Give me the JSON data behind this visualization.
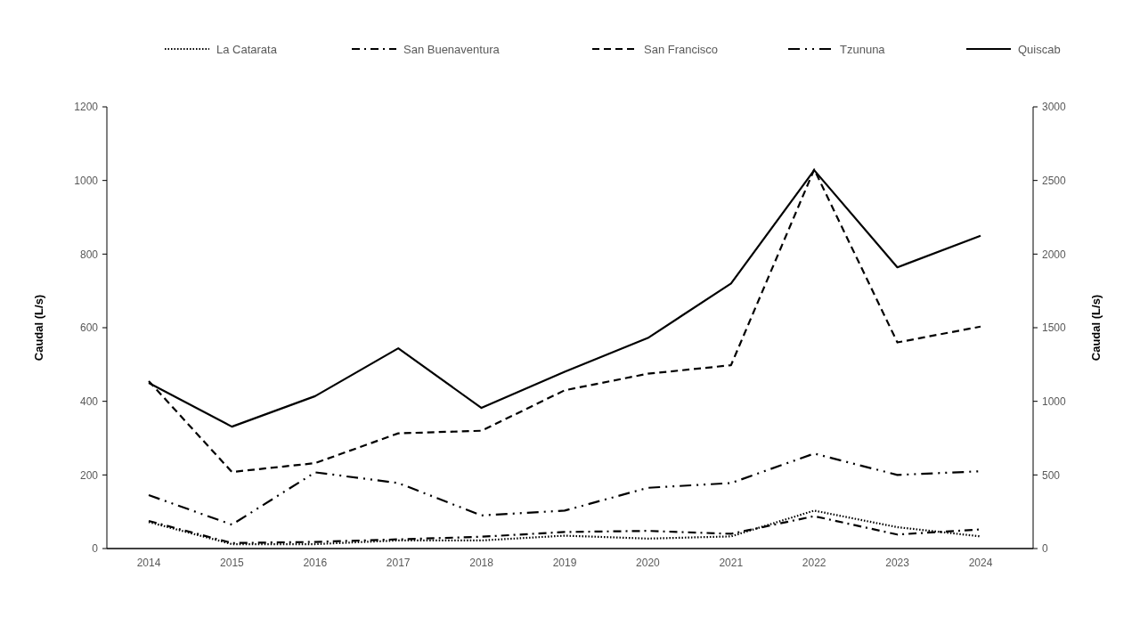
{
  "chart_data": {
    "type": "line",
    "categories": [
      "2014",
      "2015",
      "2016",
      "2017",
      "2018",
      "2019",
      "2020",
      "2021",
      "2022",
      "2023",
      "2024"
    ],
    "ylabel": "Caudal (L/s)",
    "y2label": "Caudal (L/s)",
    "ylim": [
      0,
      1200
    ],
    "yticks": [
      0,
      200,
      400,
      600,
      800,
      1000,
      1200
    ],
    "y2lim": [
      0,
      3000
    ],
    "y2ticks": [
      0,
      500,
      1000,
      1500,
      2000,
      2500,
      3000
    ],
    "grid": false,
    "legend": "top",
    "series": [
      {
        "name": "La Catarata",
        "color": "#000000",
        "line_style": "dotted",
        "values": [
          72,
          12,
          12,
          22,
          22,
          35,
          27,
          33,
          103,
          58,
          33
        ]
      },
      {
        "name": "San Buenaventura",
        "color": "#000000",
        "line_style": "dashdot",
        "values": [
          75,
          15,
          18,
          25,
          32,
          45,
          48,
          40,
          88,
          38,
          52
        ]
      },
      {
        "name": "San Francisco",
        "color": "#000000",
        "line_style": "dashed",
        "values": [
          455,
          208,
          232,
          313,
          320,
          430,
          475,
          498,
          1030,
          560,
          603
        ]
      },
      {
        "name": "Tzununa",
        "color": "#000000",
        "line_style": "longdashdotdot",
        "values": [
          145,
          65,
          207,
          178,
          90,
          103,
          165,
          178,
          258,
          200,
          210
        ]
      },
      {
        "name": "Quiscab",
        "color": "#000000",
        "line_style": "solid",
        "axis": "y2",
        "values": [
          1125,
          828,
          1035,
          1360,
          955,
          1200,
          1430,
          1800,
          2570,
          1910,
          2125
        ]
      }
    ]
  }
}
